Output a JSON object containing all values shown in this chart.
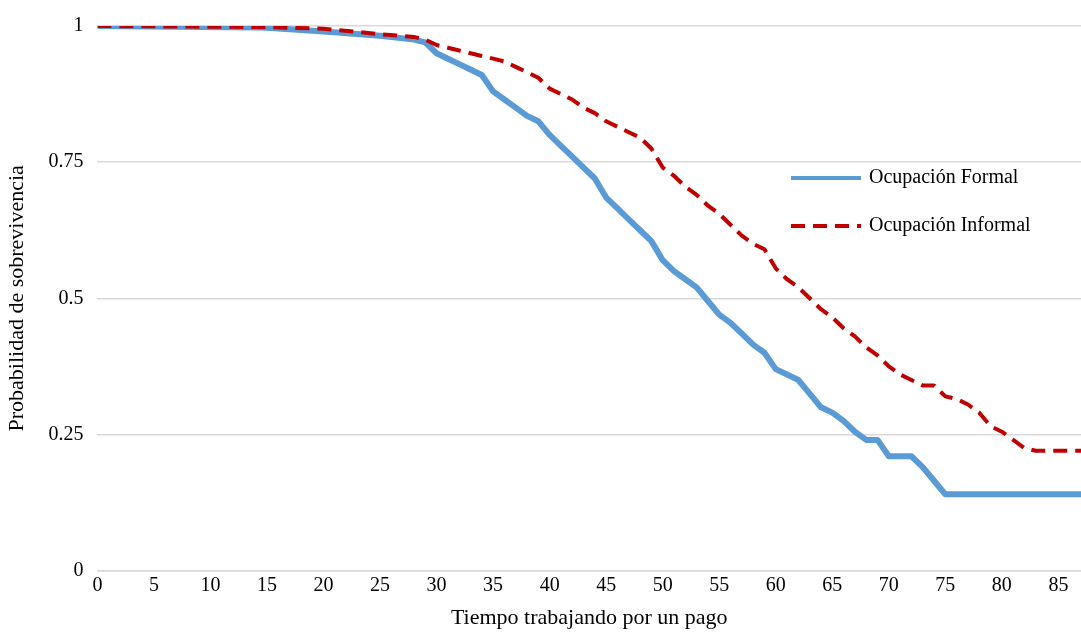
{
  "chart_data": {
    "type": "line",
    "xlabel": "Tiempo trabajando por un pago",
    "ylabel": "Probabilidad de sobrevivencia",
    "x": [
      0,
      15,
      20,
      25,
      28,
      29,
      30,
      31,
      32,
      33,
      34,
      35,
      36,
      37,
      38,
      39,
      40,
      41,
      42,
      43,
      44,
      45,
      46,
      47,
      48,
      49,
      50,
      51,
      52,
      53,
      54,
      55,
      56,
      57,
      58,
      59,
      60,
      61,
      62,
      63,
      64,
      65,
      66,
      67,
      68,
      69,
      70,
      71,
      72,
      73,
      74,
      75,
      76,
      77,
      78,
      79,
      80,
      81,
      82,
      83,
      84,
      85,
      86,
      87
    ],
    "series": [
      {
        "name": "Ocupación Formal",
        "color": "#5b9bd5",
        "line_style": "solid",
        "values": [
          1,
          0.997,
          0.99,
          0.982,
          0.975,
          0.97,
          0.95,
          0.94,
          0.93,
          0.92,
          0.91,
          0.88,
          0.865,
          0.85,
          0.835,
          0.825,
          0.8,
          0.78,
          0.76,
          0.74,
          0.72,
          0.685,
          0.665,
          0.645,
          0.625,
          0.605,
          0.57,
          0.55,
          0.535,
          0.52,
          0.495,
          0.47,
          0.455,
          0.435,
          0.415,
          0.4,
          0.37,
          0.36,
          0.35,
          0.325,
          0.3,
          0.29,
          0.275,
          0.255,
          0.24,
          0.24,
          0.21,
          0.21,
          0.21,
          0.19,
          0.165,
          0.14,
          0.14,
          0.14,
          0.14,
          0.14,
          0.14,
          0.14,
          0.14,
          0.14,
          0.14,
          0.14,
          0.14,
          0.14
        ]
      },
      {
        "name": "Ocupación Informal",
        "color": "#c00000",
        "line_style": "dashed",
        "values": [
          1,
          0.998,
          0.995,
          0.985,
          0.98,
          0.975,
          0.965,
          0.96,
          0.955,
          0.95,
          0.945,
          0.94,
          0.935,
          0.925,
          0.915,
          0.905,
          0.885,
          0.875,
          0.865,
          0.85,
          0.84,
          0.825,
          0.815,
          0.805,
          0.795,
          0.775,
          0.74,
          0.725,
          0.705,
          0.69,
          0.67,
          0.655,
          0.635,
          0.615,
          0.6,
          0.59,
          0.555,
          0.535,
          0.52,
          0.5,
          0.48,
          0.465,
          0.445,
          0.43,
          0.41,
          0.395,
          0.375,
          0.36,
          0.35,
          0.34,
          0.34,
          0.32,
          0.315,
          0.305,
          0.29,
          0.265,
          0.255,
          0.24,
          0.225,
          0.22,
          0.22,
          0.22,
          0.22,
          0.22
        ]
      }
    ],
    "xlim": [
      0,
      87
    ],
    "xticks": [
      0,
      5,
      10,
      15,
      20,
      25,
      30,
      35,
      40,
      45,
      50,
      55,
      60,
      65,
      70,
      75,
      80,
      85
    ],
    "ylim": [
      0,
      1
    ],
    "yticks": [
      0,
      0.25,
      0.5,
      0.75,
      1
    ],
    "grid": "y",
    "legend": "right",
    "marker": "none"
  }
}
